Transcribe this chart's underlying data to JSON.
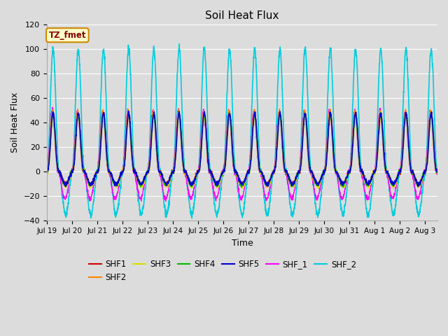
{
  "title": "Soil Heat Flux",
  "xlabel": "Time",
  "ylabel": "Soil Heat Flux",
  "ylim": [
    -40,
    120
  ],
  "background_color": "#dcdcdc",
  "plot_bg_color": "#dcdcdc",
  "grid_color": "white",
  "x_tick_labels": [
    "Jul 19",
    "Jul 20",
    "Jul 21",
    "Jul 22",
    "Jul 23",
    "Jul 24",
    "Jul 25",
    "Jul 26",
    "Jul 27",
    "Jul 28",
    "Jul 29",
    "Jul 30",
    "Jul 31",
    "Aug 1",
    "Aug 2",
    "Aug 3"
  ],
  "series_order": [
    "SHF_2",
    "SHF_1",
    "SHF1",
    "SHF2",
    "SHF3",
    "SHF4",
    "SHF5"
  ],
  "series": {
    "SHF1": {
      "color": "#cc0000",
      "lw": 1.0
    },
    "SHF2": {
      "color": "#ff8800",
      "lw": 1.0
    },
    "SHF3": {
      "color": "#dddd00",
      "lw": 1.0
    },
    "SHF4": {
      "color": "#00bb00",
      "lw": 1.0
    },
    "SHF5": {
      "color": "#0000cc",
      "lw": 1.2
    },
    "SHF_1": {
      "color": "#ff00ff",
      "lw": 1.0
    },
    "SHF_2": {
      "color": "#00ccdd",
      "lw": 1.2
    }
  },
  "legend_order": [
    "SHF1",
    "SHF2",
    "SHF3",
    "SHF4",
    "SHF5",
    "SHF_1",
    "SHF_2"
  ],
  "annotation_text": "TZ_fmet",
  "annotation_color": "#880000",
  "annotation_bg": "#ffffcc",
  "annotation_border": "#cc8800",
  "days": 15.5,
  "samples_per_day": 144
}
